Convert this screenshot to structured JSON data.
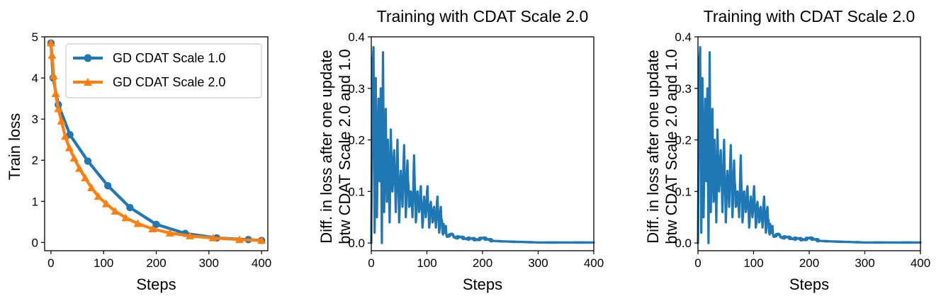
{
  "colors": {
    "blue": "#1f77b4",
    "orange": "#ff7f0e"
  },
  "chart_data": [
    {
      "type": "line",
      "title": "",
      "xlabel": "Steps",
      "ylabel": "Train loss",
      "xlim": [
        -12,
        412
      ],
      "ylim": [
        -0.2,
        5.0
      ],
      "xticks": [
        "0",
        "100",
        "200",
        "300",
        "400"
      ],
      "yticks": [
        "0",
        "1",
        "2",
        "3",
        "4",
        "5"
      ],
      "legend": "top-right",
      "series": [
        {
          "name": "GD CDAT Scale 1.0",
          "color": "#1f77b4",
          "marker": "circle",
          "x": [
            0,
            4,
            14,
            36,
            70,
            108,
            150,
            200,
            255,
            315,
            375,
            400
          ],
          "y": [
            4.85,
            4.0,
            3.35,
            2.62,
            1.98,
            1.38,
            0.85,
            0.44,
            0.22,
            0.11,
            0.07,
            0.05
          ]
        },
        {
          "name": "GD CDAT Scale 2.0",
          "color": "#ff7f0e",
          "marker": "triangle",
          "x": [
            0,
            2,
            5,
            9,
            14,
            20,
            27,
            35,
            44,
            54,
            65,
            77,
            90,
            105,
            122,
            142,
            165,
            193,
            226,
            264,
            308,
            358,
            400
          ],
          "y": [
            4.85,
            4.55,
            4.05,
            3.62,
            3.25,
            2.95,
            2.58,
            2.3,
            2.05,
            1.8,
            1.57,
            1.33,
            1.12,
            0.94,
            0.76,
            0.6,
            0.46,
            0.33,
            0.23,
            0.16,
            0.11,
            0.07,
            0.05
          ]
        }
      ]
    },
    {
      "type": "line",
      "title": "Training with CDAT Scale 2.0",
      "xlabel": "Steps",
      "ylabel_lines": [
        "Diff. in loss after one update",
        "btw CDAT Scale 2.0 and 1.0"
      ],
      "xlim": [
        0,
        400
      ],
      "ylim": [
        -0.015,
        0.4
      ],
      "xticks": [
        "0",
        "100",
        "200",
        "300",
        "400"
      ],
      "yticks": [
        "0.0",
        "0.1",
        "0.2",
        "0.3",
        "0.4"
      ],
      "series": [
        {
          "name": "diff",
          "color": "#1f77b4",
          "key_points": [
            [
              0,
              0.0
            ],
            [
              2,
              0.36
            ],
            [
              4,
              0.38
            ],
            [
              6,
              0.02
            ],
            [
              8,
              0.32
            ],
            [
              10,
              0.05
            ],
            [
              13,
              0.28
            ],
            [
              15,
              0.12
            ],
            [
              17,
              0.3
            ],
            [
              19,
              0.0
            ],
            [
              21,
              0.37
            ],
            [
              23,
              0.06
            ],
            [
              26,
              0.26
            ],
            [
              28,
              0.08
            ],
            [
              30,
              0.2
            ],
            [
              33,
              0.04
            ],
            [
              35,
              0.22
            ],
            [
              38,
              0.1
            ],
            [
              41,
              0.18
            ],
            [
              44,
              0.06
            ],
            [
              47,
              0.2
            ],
            [
              50,
              0.04
            ],
            [
              53,
              0.14
            ],
            [
              56,
              0.07
            ],
            [
              59,
              0.19
            ],
            [
              62,
              0.05
            ],
            [
              65,
              0.16
            ],
            [
              68,
              0.07
            ],
            [
              71,
              0.1
            ],
            [
              74,
              0.05
            ],
            [
              77,
              0.17
            ],
            [
              80,
              0.04
            ],
            [
              83,
              0.1
            ],
            [
              86,
              0.06
            ],
            [
              89,
              0.11
            ],
            [
              92,
              0.03
            ],
            [
              95,
              0.09
            ],
            [
              98,
              0.05
            ],
            [
              101,
              0.11
            ],
            [
              104,
              0.03
            ],
            [
              107,
              0.08
            ],
            [
              110,
              0.04
            ],
            [
              113,
              0.07
            ],
            [
              116,
              0.03
            ],
            [
              119,
              0.09
            ],
            [
              122,
              0.02
            ],
            [
              125,
              0.07
            ],
            [
              128,
              0.02
            ],
            [
              132,
              0.03
            ],
            [
              136,
              0.012
            ],
            [
              145,
              0.018
            ],
            [
              150,
              0.01
            ],
            [
              160,
              0.012
            ],
            [
              170,
              0.008
            ],
            [
              180,
              0.009
            ],
            [
              190,
              0.006
            ],
            [
              200,
              0.01
            ],
            [
              210,
              0.007
            ],
            [
              220,
              0.004
            ],
            [
              240,
              0.003
            ],
            [
              270,
              0.002
            ],
            [
              300,
              0.001
            ],
            [
              350,
              0.001
            ],
            [
              400,
              0.001
            ]
          ]
        }
      ]
    },
    {
      "type": "line",
      "title": "Training with CDAT Scale 2.0",
      "xlabel": "Steps",
      "ylabel_lines": [
        "Diff. in loss after one update",
        "btw CDAT Scale 2.0 and 1.0"
      ],
      "xlim": [
        0,
        400
      ],
      "ylim": [
        -0.015,
        0.4
      ],
      "xticks": [
        "0",
        "100",
        "200",
        "300",
        "400"
      ],
      "yticks": [
        "0.0",
        "0.1",
        "0.2",
        "0.3",
        "0.4"
      ],
      "series": [
        {
          "name": "diff",
          "color": "#1f77b4",
          "key_points": [
            [
              0,
              0.0
            ],
            [
              2,
              0.36
            ],
            [
              4,
              0.38
            ],
            [
              6,
              0.02
            ],
            [
              8,
              0.32
            ],
            [
              10,
              0.05
            ],
            [
              13,
              0.28
            ],
            [
              15,
              0.12
            ],
            [
              17,
              0.3
            ],
            [
              19,
              0.0
            ],
            [
              21,
              0.37
            ],
            [
              23,
              0.06
            ],
            [
              26,
              0.26
            ],
            [
              28,
              0.08
            ],
            [
              30,
              0.2
            ],
            [
              33,
              0.04
            ],
            [
              35,
              0.22
            ],
            [
              38,
              0.1
            ],
            [
              41,
              0.18
            ],
            [
              44,
              0.06
            ],
            [
              47,
              0.2
            ],
            [
              50,
              0.04
            ],
            [
              53,
              0.14
            ],
            [
              56,
              0.07
            ],
            [
              59,
              0.19
            ],
            [
              62,
              0.05
            ],
            [
              65,
              0.16
            ],
            [
              68,
              0.07
            ],
            [
              71,
              0.1
            ],
            [
              74,
              0.05
            ],
            [
              77,
              0.17
            ],
            [
              80,
              0.04
            ],
            [
              83,
              0.1
            ],
            [
              86,
              0.06
            ],
            [
              89,
              0.11
            ],
            [
              92,
              0.03
            ],
            [
              95,
              0.09
            ],
            [
              98,
              0.05
            ],
            [
              101,
              0.11
            ],
            [
              104,
              0.03
            ],
            [
              107,
              0.08
            ],
            [
              110,
              0.04
            ],
            [
              113,
              0.07
            ],
            [
              116,
              0.03
            ],
            [
              119,
              0.09
            ],
            [
              122,
              0.02
            ],
            [
              125,
              0.07
            ],
            [
              128,
              0.02
            ],
            [
              132,
              0.03
            ],
            [
              136,
              0.012
            ],
            [
              145,
              0.018
            ],
            [
              150,
              0.01
            ],
            [
              160,
              0.012
            ],
            [
              170,
              0.008
            ],
            [
              180,
              0.009
            ],
            [
              190,
              0.006
            ],
            [
              200,
              0.01
            ],
            [
              210,
              0.007
            ],
            [
              220,
              0.004
            ],
            [
              240,
              0.003
            ],
            [
              270,
              0.002
            ],
            [
              300,
              0.001
            ],
            [
              350,
              0.001
            ],
            [
              400,
              0.001
            ]
          ]
        }
      ]
    }
  ]
}
